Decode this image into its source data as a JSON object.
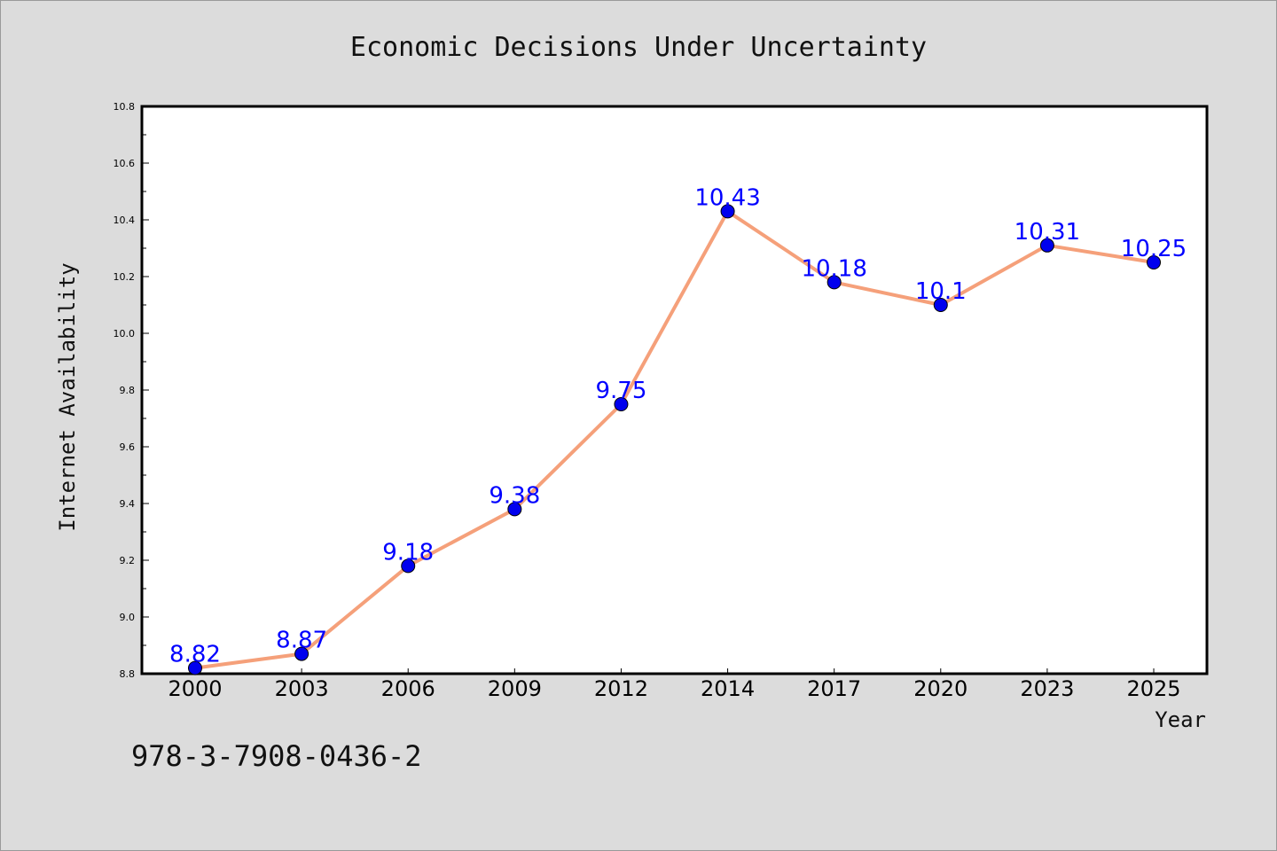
{
  "chart_data": {
    "type": "line",
    "title": "Economic Decisions Under Uncertainty",
    "xlabel": "Year",
    "ylabel": "Internet Availability",
    "categories": [
      "2000",
      "2003",
      "2006",
      "2009",
      "2012",
      "2014",
      "2017",
      "2020",
      "2023",
      "2025"
    ],
    "series": [
      {
        "values": [
          8.82,
          8.87,
          9.18,
          9.38,
          9.75,
          10.43,
          10.18,
          10.1,
          10.31,
          10.25
        ],
        "labels": [
          "8.82",
          "8.87",
          "9.18",
          "9.38",
          "9.75",
          "10.43",
          "10.18",
          "10.1",
          "10.31",
          "10.25"
        ],
        "line_color": "#f5a07a",
        "marker_color": "#0000ee"
      }
    ],
    "ylim": [
      8.8,
      10.8
    ],
    "yticks": [
      "8.8",
      "9.0",
      "9.2",
      "9.4",
      "9.6",
      "9.8",
      "10.0",
      "10.2",
      "10.4",
      "10.6",
      "10.8"
    ],
    "grid": false,
    "data_labels": true
  },
  "footer": {
    "isbn": "978-3-7908-0436-2"
  }
}
